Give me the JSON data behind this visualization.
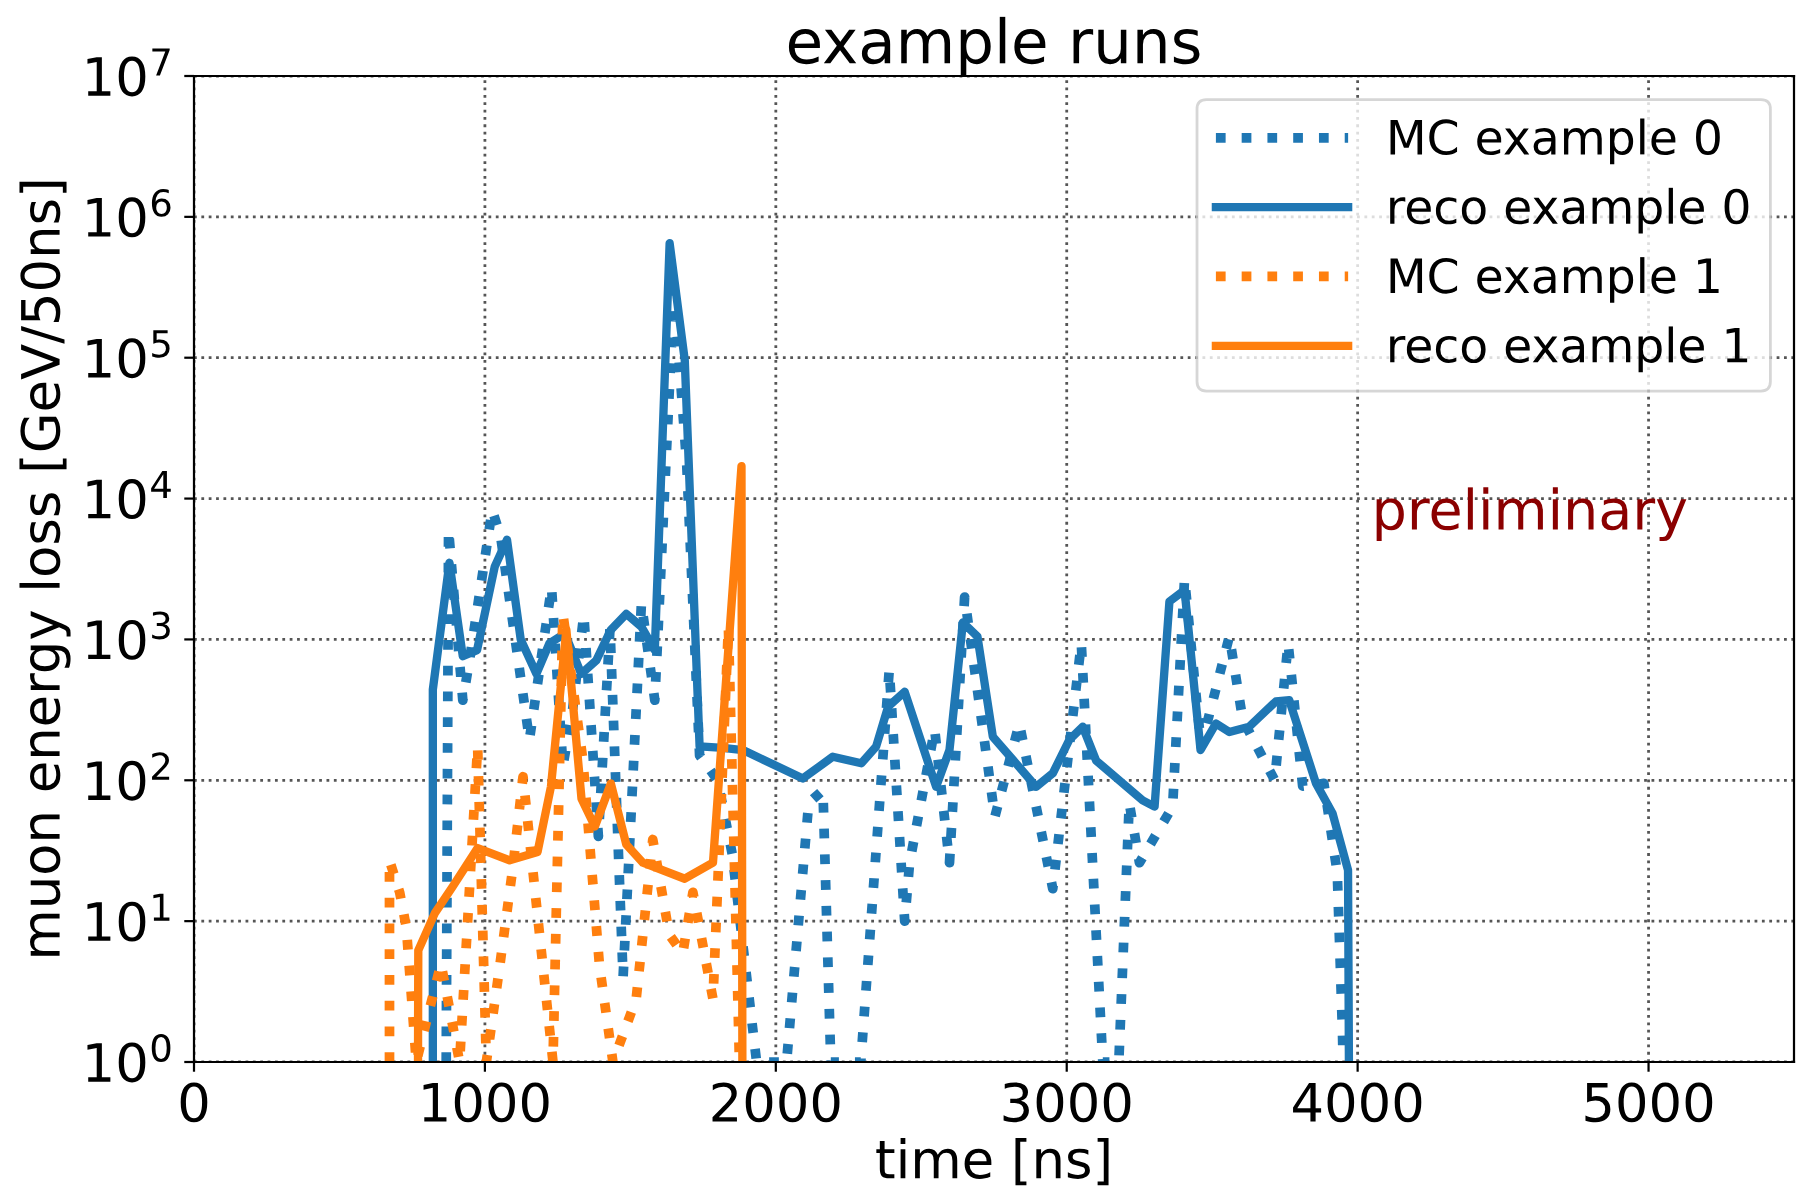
{
  "chart_data": {
    "type": "line",
    "title": "example runs",
    "xlabel": "time [ns]",
    "ylabel": "muon energy loss [GeV/50ns]",
    "annotations": [
      "preliminary"
    ],
    "log": "y",
    "grid": true,
    "legend": "top right",
    "xlim": [
      0,
      5500
    ],
    "xticks": [
      0,
      1000,
      2000,
      3000,
      4000,
      5000
    ],
    "ylim": [
      1,
      10000000
    ],
    "yticks": [
      {
        "value": 1,
        "label": "10$^{0}$"
      },
      {
        "value": 10,
        "label": "10$^{1}$"
      },
      {
        "value": 100,
        "label": "10$^{2}$"
      },
      {
        "value": 1000,
        "label": "10$^{3}$"
      },
      {
        "value": 10000,
        "label": "10$^{4}$"
      },
      {
        "value": 100000,
        "label": "10$^{5}$"
      },
      {
        "value": 1000000,
        "label": "10$^{6}$"
      },
      {
        "value": 10000000,
        "label": "10$^{7}$"
      }
    ],
    "series": [
      {
        "name": "MC example 0",
        "color": "#1f77b4",
        "line_style": "dotted",
        "x": [
          867,
          875,
          924,
          947,
          1025,
          1054,
          1153,
          1229,
          1268,
          1300,
          1340,
          1390,
          1430,
          1475,
          1538,
          1584,
          1650,
          1694,
          1738,
          1800,
          1850,
          1934,
          2037,
          2113,
          2162,
          2189,
          2292,
          2390,
          2443,
          2460,
          2546,
          2597,
          2649,
          2753,
          2837,
          2952,
          3050,
          3124,
          3179,
          3215,
          3250,
          3364,
          3405,
          3462,
          3559,
          3605,
          3715,
          3761,
          3811,
          3884,
          3930,
          3948,
          3950
        ],
        "values": [
          1,
          6000,
          370,
          710,
          8300,
          5400,
          194,
          2350,
          126,
          300,
          1500,
          40,
          1200,
          4,
          1800,
          370,
          300000,
          17000,
          150,
          100,
          30,
          1,
          1,
          69,
          85,
          1,
          1,
          610,
          10,
          26,
          230,
          26,
          2000,
          55,
          253,
          17,
          940,
          1,
          1,
          69,
          26,
          65,
          2700,
          174,
          1050,
          270,
          100,
          940,
          91,
          95,
          22,
          1.6,
          1
        ]
      },
      {
        "name": "reco example 0",
        "color": "#1f77b4",
        "line_style": "solid",
        "x": [
          821,
          821,
          878,
          924,
          973,
          1034,
          1076,
          1123,
          1177,
          1222,
          1275,
          1331,
          1383,
          1433,
          1486,
          1538,
          1584,
          1635,
          1687,
          1738,
          1818,
          1887,
          2093,
          2196,
          2294,
          2345,
          2386,
          2443,
          2551,
          2597,
          2643,
          2693,
          2746,
          2895,
          2952,
          3009,
          3055,
          3101,
          3261,
          3302,
          3353,
          3405,
          3460,
          3513,
          3559,
          3627,
          3719,
          3765,
          3857,
          3914,
          3967,
          3970
        ],
        "values": [
          1,
          440,
          3500,
          760,
          840,
          3300,
          5100,
          1000,
          570,
          940,
          1100,
          570,
          710,
          1170,
          1520,
          1230,
          840,
          650000,
          96000,
          174,
          170,
          164,
          103,
          147,
          132,
          174,
          333,
          425,
          90,
          164,
          1320,
          1050,
          204,
          90,
          112,
          194,
          240,
          138,
          72,
          65,
          1860,
          2240,
          164,
          253,
          220,
          240,
          363,
          370,
          95,
          58,
          23,
          1
        ]
      },
      {
        "name": "MC example 1",
        "color": "#ff7f0e",
        "line_style": "dotted",
        "x": [
          672,
          672,
          707,
          730,
          764,
          849,
          913,
          975,
          1005,
          1051,
          1096,
          1131,
          1188,
          1234,
          1268,
          1337,
          1394,
          1440,
          1520,
          1577,
          1634,
          1680,
          1715,
          1784,
          1837,
          1875
        ],
        "values": [
          1,
          27,
          16,
          9,
          1,
          5,
          1,
          174,
          1,
          4.8,
          24,
          106,
          8,
          1,
          1520,
          138,
          4.8,
          1,
          2.8,
          38,
          8,
          5.9,
          16,
          2.8,
          1230,
          1
        ]
      },
      {
        "name": "reco example 1",
        "color": "#ff7f0e",
        "line_style": "solid",
        "x": [
          770,
          771,
          828,
          890,
          975,
          1085,
          1181,
          1227,
          1280,
          1332,
          1378,
          1433,
          1486,
          1543,
          1687,
          1784,
          1882,
          1885
        ],
        "values": [
          1,
          6.2,
          11.4,
          17.7,
          33,
          27,
          31,
          90,
          1170,
          74,
          47,
          95,
          35,
          26,
          20,
          26,
          17000,
          1
        ]
      }
    ]
  }
}
